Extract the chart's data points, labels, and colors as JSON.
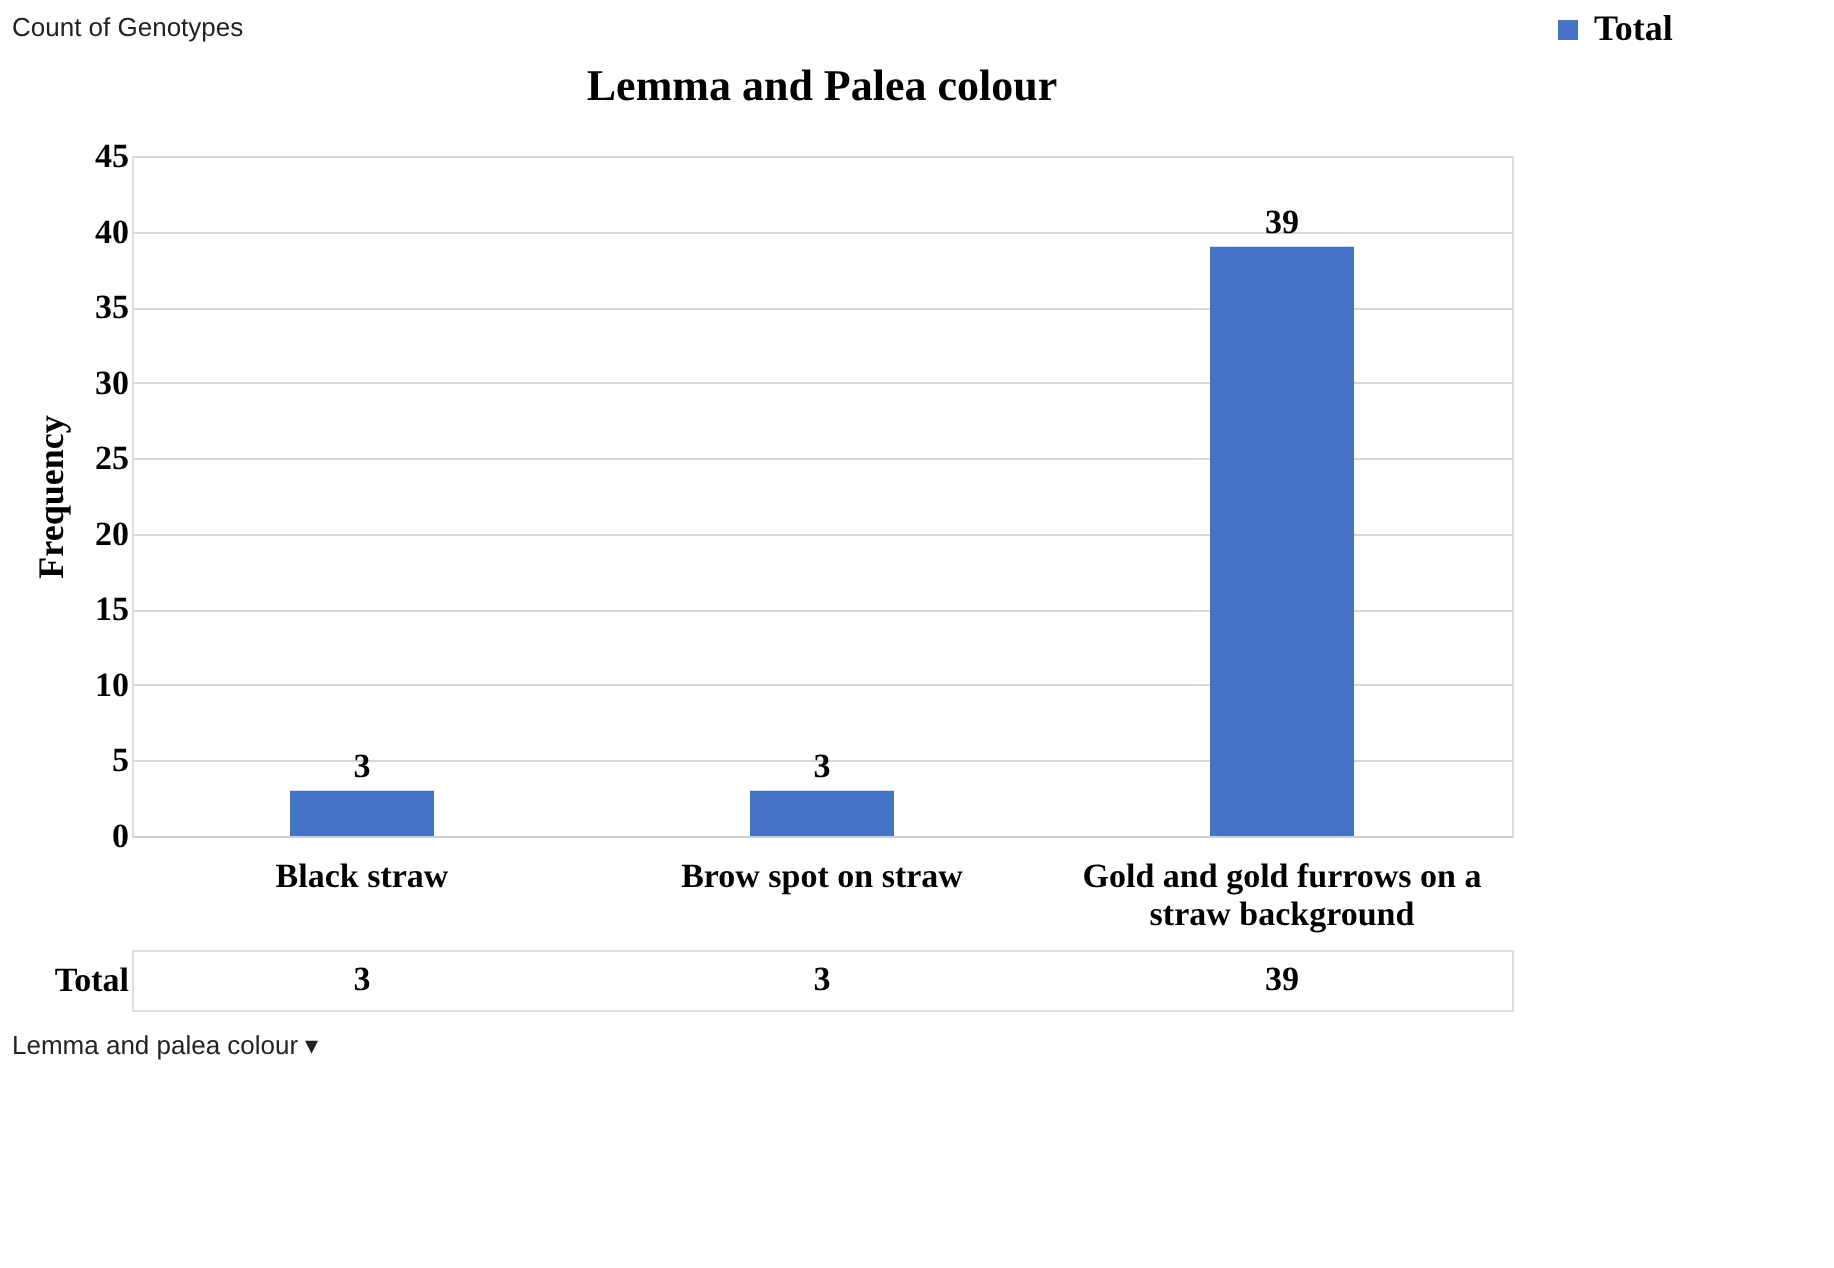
{
  "chart_data": {
    "type": "bar",
    "title": "Lemma and Palea colour",
    "ylabel": "Frequency",
    "categories": [
      "Black straw",
      "Brow spot on straw",
      "Gold and gold furrows on a straw background"
    ],
    "series": [
      {
        "name": "Total",
        "color": "#4472c4",
        "values": [
          3,
          3,
          39
        ],
        "value_labels": [
          "3",
          "3",
          "39"
        ]
      }
    ],
    "ylim": [
      0,
      45
    ],
    "yticks": [
      0,
      5,
      10,
      15,
      20,
      25,
      30,
      35,
      40,
      45
    ],
    "grid": "y",
    "legend": "right",
    "data_labels": true,
    "annotations": [
      "Count of Genotypes",
      "Lemma and palea colour ▾"
    ]
  }
}
